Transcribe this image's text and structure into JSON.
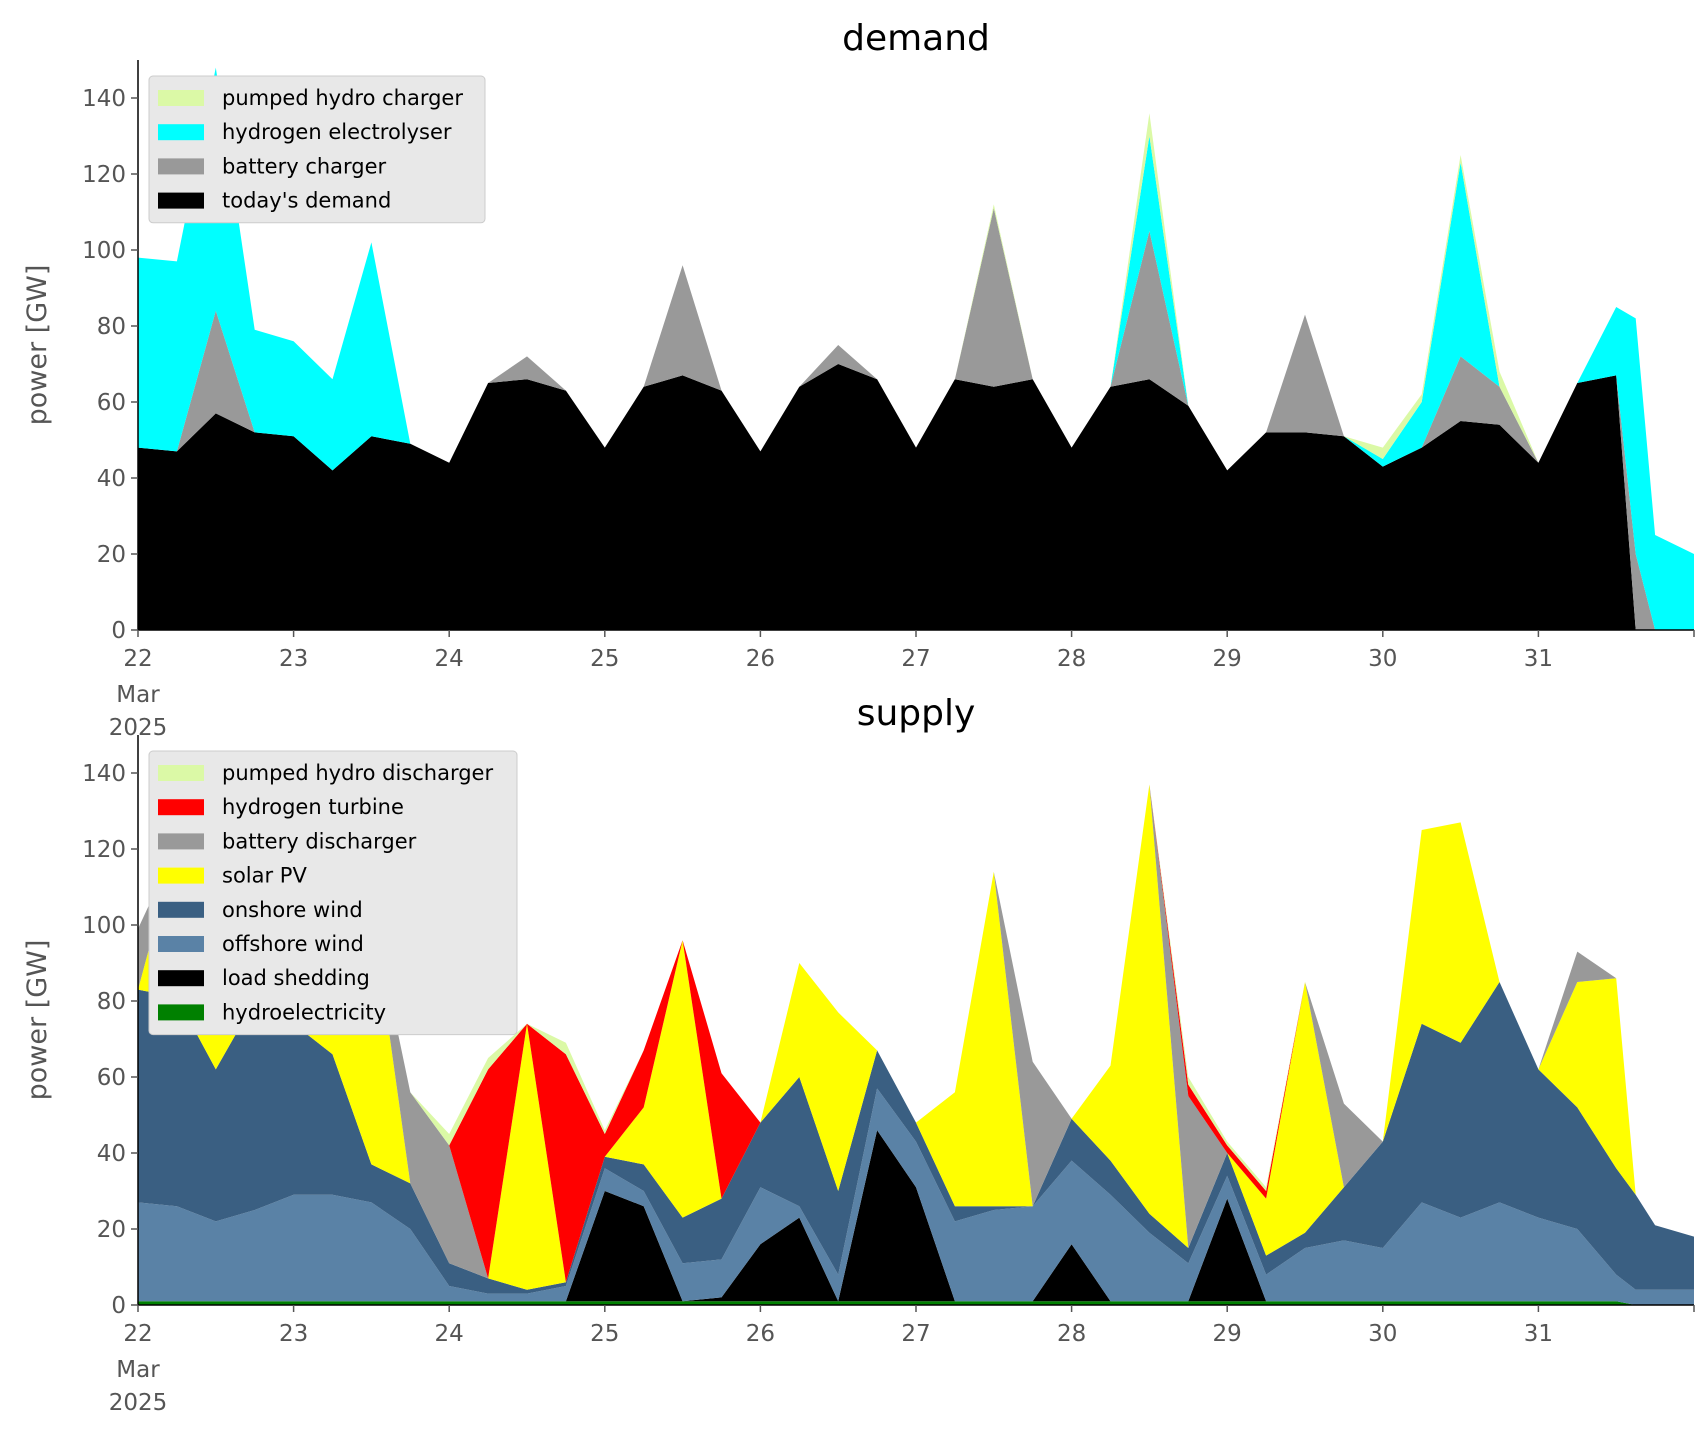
{
  "chart_data": [
    {
      "type": "area",
      "stacked": true,
      "title": "demand",
      "ylabel": "power [GW]",
      "ylim": [
        0,
        150
      ],
      "yticks": [
        0,
        20,
        40,
        60,
        80,
        100,
        120,
        140
      ],
      "xlim": [
        "2025-03-22 00:00",
        "2025-03-31 23:00"
      ],
      "xticks": [
        "22",
        "23",
        "24",
        "25",
        "26",
        "27",
        "28",
        "29",
        "30",
        "31"
      ],
      "xtick_sub": [
        "Mar",
        "2025"
      ],
      "grid": false,
      "legend": "top-left",
      "x": [
        22,
        22.25,
        22.5,
        22.75,
        23,
        23.25,
        23.5,
        23.75,
        24,
        24.25,
        24.5,
        24.75,
        25,
        25.25,
        25.5,
        25.75,
        26,
        26.25,
        26.5,
        26.75,
        27,
        27.25,
        27.5,
        27.75,
        28,
        28.25,
        28.5,
        28.75,
        29,
        29.25,
        29.5,
        29.75,
        30,
        30.25,
        30.5,
        30.75,
        31,
        31.25,
        31.5,
        31.625,
        31.75,
        32
      ],
      "series": [
        {
          "name": "today's demand",
          "color": "#000000",
          "values": [
            48,
            47,
            57,
            52,
            51,
            42,
            51,
            49,
            44,
            65,
            66,
            63,
            48,
            64,
            67,
            63,
            47,
            64,
            70,
            66,
            48,
            66,
            64,
            66,
            48,
            64,
            66,
            59,
            42,
            52,
            52,
            51,
            43,
            48,
            55,
            54,
            44,
            65,
            67,
            0,
            0,
            0
          ]
        },
        {
          "name": "battery charger",
          "color": "#999999",
          "values": [
            0,
            0,
            27,
            0,
            0,
            0,
            0,
            0,
            0,
            0,
            6,
            0,
            0,
            0,
            29,
            0,
            0,
            0,
            5,
            0,
            0,
            0,
            47,
            0,
            0,
            0,
            39,
            0,
            0,
            0,
            31,
            0,
            0,
            0,
            17,
            10,
            0,
            0,
            0,
            20,
            0,
            0
          ]
        },
        {
          "name": "hydrogen electrolyser",
          "color": "#00ffff",
          "values": [
            50,
            50,
            64,
            27,
            25,
            24,
            51,
            0,
            0,
            0,
            0,
            0,
            0,
            0,
            0,
            0,
            0,
            0,
            0,
            0,
            0,
            0,
            0,
            0,
            0,
            0,
            25,
            0,
            0,
            0,
            0,
            0,
            2,
            12,
            51,
            0,
            0,
            0,
            18,
            62,
            25,
            20
          ]
        },
        {
          "name": "pumped hydro charger",
          "color": "#dbf9a6",
          "values": [
            0,
            0,
            0,
            0,
            0,
            0,
            0,
            0,
            0,
            0,
            0,
            0,
            0,
            0,
            0,
            0,
            0,
            0,
            0,
            0,
            0,
            0,
            1,
            0,
            0,
            0,
            6,
            0,
            0,
            0,
            0,
            0,
            3,
            2,
            2,
            4,
            0,
            0,
            0,
            0,
            0,
            0
          ]
        }
      ]
    },
    {
      "type": "area",
      "stacked": true,
      "title": "supply",
      "ylabel": "power [GW]",
      "ylim": [
        0,
        150
      ],
      "yticks": [
        0,
        20,
        40,
        60,
        80,
        100,
        120,
        140
      ],
      "xlim": [
        "2025-03-22 00:00",
        "2025-03-31 23:00"
      ],
      "xticks": [
        "22",
        "23",
        "24",
        "25",
        "26",
        "27",
        "28",
        "29",
        "30",
        "31"
      ],
      "xtick_sub": [
        "Mar",
        "2025"
      ],
      "grid": false,
      "legend": "top-left",
      "x": [
        22,
        22.25,
        22.5,
        22.75,
        23,
        23.25,
        23.5,
        23.75,
        24,
        24.25,
        24.5,
        24.75,
        25,
        25.25,
        25.5,
        25.75,
        26,
        26.25,
        26.5,
        26.75,
        27,
        27.25,
        27.5,
        27.75,
        28,
        28.25,
        28.5,
        28.75,
        29,
        29.25,
        29.5,
        29.75,
        30,
        30.25,
        30.5,
        30.75,
        31,
        31.25,
        31.5,
        31.625,
        31.75,
        32
      ],
      "series": [
        {
          "name": "hydroelectricity",
          "color": "#008000",
          "values": [
            1,
            1,
            1,
            1,
            1,
            1,
            1,
            1,
            1,
            1,
            1,
            1,
            1,
            1,
            1,
            1,
            1,
            1,
            1,
            1,
            1,
            1,
            1,
            1,
            1,
            1,
            1,
            1,
            1,
            1,
            1,
            1,
            1,
            1,
            1,
            1,
            1,
            1,
            1,
            0,
            0,
            0
          ]
        },
        {
          "name": "load shedding",
          "color": "#000000",
          "values": [
            0,
            0,
            0,
            0,
            0,
            0,
            0,
            0,
            0,
            0,
            0,
            0,
            29,
            25,
            0,
            1,
            15,
            22,
            0,
            45,
            30,
            0,
            0,
            0,
            15,
            0,
            0,
            0,
            27,
            0,
            0,
            0,
            0,
            0,
            0,
            0,
            0,
            0,
            0,
            0,
            0,
            0
          ]
        },
        {
          "name": "offshore wind",
          "color": "#5a82a6",
          "values": [
            26,
            25,
            21,
            24,
            28,
            28,
            26,
            19,
            4,
            2,
            2,
            4,
            6,
            4,
            10,
            10,
            15,
            3,
            7,
            11,
            12,
            21,
            24,
            25,
            22,
            28,
            18,
            10,
            6,
            7,
            14,
            16,
            14,
            26,
            22,
            26,
            22,
            19,
            7,
            4,
            4,
            4
          ]
        },
        {
          "name": "onshore wind",
          "color": "#3a5f82",
          "values": [
            56,
            55,
            40,
            55,
            45,
            37,
            10,
            12,
            6,
            4,
            1,
            1,
            3,
            7,
            12,
            16,
            17,
            34,
            22,
            10,
            5,
            4,
            1,
            0,
            11,
            9,
            5,
            4,
            6,
            5,
            4,
            14,
            28,
            47,
            46,
            58,
            39,
            32,
            28,
            25,
            17,
            14
          ]
        },
        {
          "name": "solar PV",
          "color": "#ffff00",
          "values": [
            0,
            40,
            84,
            0,
            0,
            20,
            68,
            0,
            0,
            0,
            70,
            0,
            0,
            15,
            73,
            0,
            0,
            30,
            47,
            0,
            0,
            30,
            88,
            0,
            0,
            25,
            113,
            0,
            0,
            15,
            66,
            0,
            0,
            51,
            58,
            0,
            0,
            33,
            50,
            0,
            0,
            0
          ]
        },
        {
          "name": "battery discharger",
          "color": "#999999",
          "values": [
            16,
            0,
            0,
            0,
            0,
            0,
            0,
            24,
            31,
            0,
            0,
            0,
            0,
            0,
            0,
            0,
            0,
            0,
            0,
            0,
            0,
            0,
            0,
            38,
            0,
            0,
            0,
            40,
            0,
            0,
            0,
            22,
            0,
            0,
            0,
            0,
            0,
            8,
            0,
            0,
            0,
            0
          ]
        },
        {
          "name": "hydrogen turbine",
          "color": "#ff0000",
          "values": [
            0,
            0,
            0,
            0,
            0,
            0,
            0,
            0,
            0,
            55,
            0,
            60,
            6,
            15,
            0,
            33,
            0,
            0,
            0,
            0,
            0,
            0,
            0,
            0,
            0,
            0,
            0,
            3,
            2,
            2,
            0,
            0,
            0,
            0,
            0,
            0,
            0,
            0,
            0,
            0,
            0,
            0
          ]
        },
        {
          "name": "pumped hydro discharger",
          "color": "#dbf9a6",
          "values": [
            0,
            0,
            0,
            0,
            0,
            0,
            0,
            0,
            3,
            3,
            0,
            3,
            1,
            0,
            0,
            0,
            0,
            0,
            0,
            0,
            0,
            0,
            0,
            0,
            0,
            0,
            0,
            2,
            1,
            1,
            0,
            0,
            0,
            0,
            0,
            0,
            0,
            0,
            0,
            0,
            0,
            0
          ]
        }
      ]
    }
  ]
}
